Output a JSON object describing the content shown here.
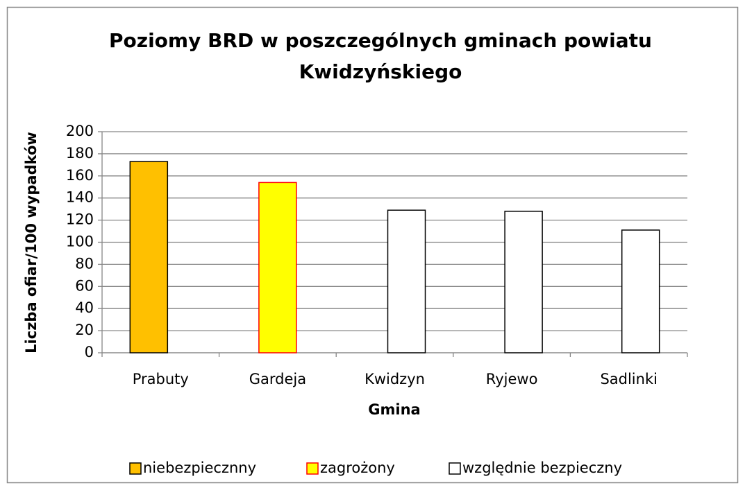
{
  "chart_data": {
    "type": "bar",
    "title": [
      "Poziomy BRD w poszczególnych gminach powiatu",
      "Kwidzyńskiego"
    ],
    "x_label": "Gmina",
    "y_label": "Liczba ofiar/100 wypadków",
    "categories": [
      "Prabuty",
      "Gardeja",
      "Kwidzyn",
      "Ryjewo",
      "Sadlinki"
    ],
    "series": [
      {
        "name": "niebezpiecznny",
        "color": "#ffc000",
        "stroke": "#000000",
        "values": [
          173,
          null,
          null,
          null,
          null
        ]
      },
      {
        "name": "zagrożony",
        "color": "#ffff00",
        "stroke": "#ff0000",
        "values": [
          null,
          154,
          null,
          null,
          null
        ]
      },
      {
        "name": "względnie bezpieczny",
        "color": "#ffffff",
        "stroke": "#000000",
        "values": [
          null,
          null,
          129,
          128,
          111
        ]
      }
    ],
    "ylim": [
      0,
      200
    ],
    "yticks": [
      0,
      20,
      40,
      60,
      80,
      100,
      120,
      140,
      160,
      180,
      200
    ],
    "grid": true,
    "legend": "bottom"
  }
}
